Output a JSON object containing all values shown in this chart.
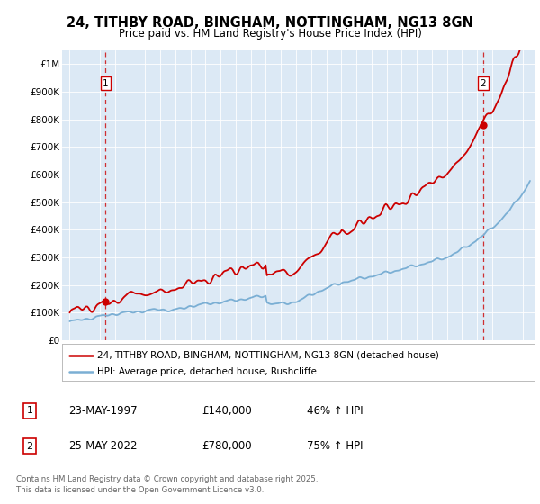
{
  "title_line1": "24, TITHBY ROAD, BINGHAM, NOTTINGHAM, NG13 8GN",
  "title_line2": "Price paid vs. HM Land Registry's House Price Index (HPI)",
  "bg_color": "#dce9f5",
  "red_color": "#cc0000",
  "blue_color": "#7bafd4",
  "sale1_price": 140000,
  "sale2_price": 780000,
  "sale1_x": 1997.39,
  "sale2_x": 2022.39,
  "footer": "Contains HM Land Registry data © Crown copyright and database right 2025.\nThis data is licensed under the Open Government Licence v3.0.",
  "legend_line1": "24, TITHBY ROAD, BINGHAM, NOTTINGHAM, NG13 8GN (detached house)",
  "legend_line2": "HPI: Average price, detached house, Rushcliffe",
  "yticks": [
    0,
    100000,
    200000,
    300000,
    400000,
    500000,
    600000,
    700000,
    800000,
    900000,
    1000000
  ],
  "ylabels": [
    "£0",
    "£100K",
    "£200K",
    "£300K",
    "£400K",
    "£500K",
    "£600K",
    "£700K",
    "£800K",
    "£900K",
    "£1M"
  ],
  "xmin": 1994.5,
  "xmax": 2025.8,
  "ymin": 0,
  "ymax": 1050000,
  "sale1_num": "1",
  "sale2_num": "2",
  "sale1_date": "23-MAY-1997",
  "sale1_pricestr": "£140,000",
  "sale1_pct": "46% ↑ HPI",
  "sale2_date": "25-MAY-2022",
  "sale2_pricestr": "£780,000",
  "sale2_pct": "75% ↑ HPI"
}
